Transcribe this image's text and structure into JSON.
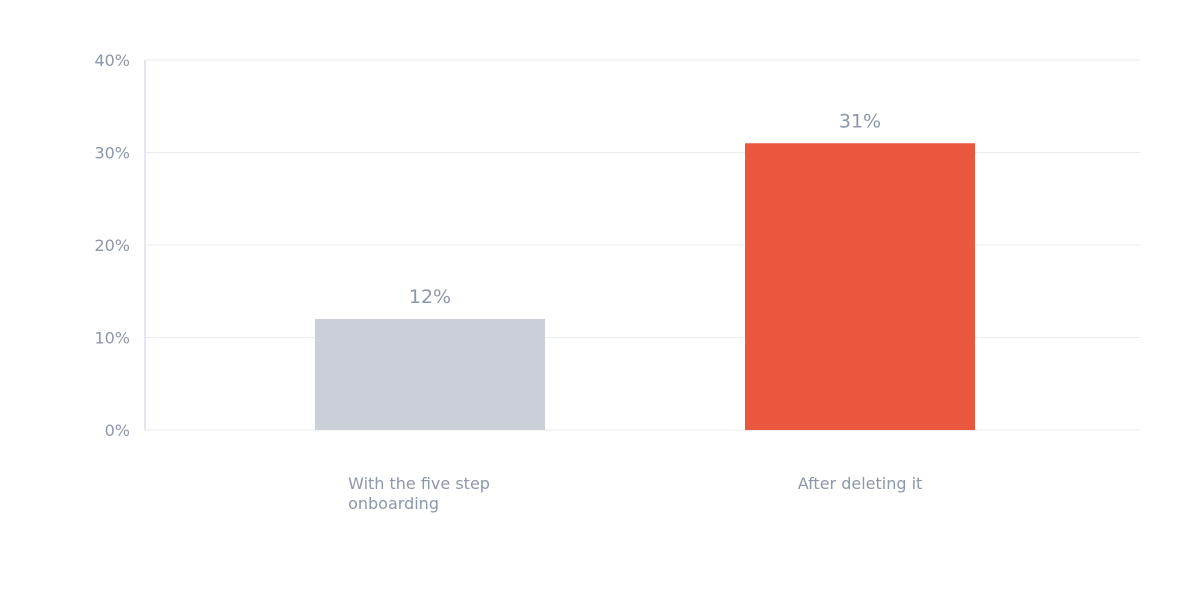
{
  "chart_data": {
    "type": "bar",
    "title": "",
    "xlabel": "",
    "ylabel": "",
    "categories": [
      "With the five step onboarding",
      "After deleting it"
    ],
    "category_label_lines": [
      [
        "With the five step",
        "onboarding"
      ],
      [
        "After deleting it"
      ]
    ],
    "values": [
      12,
      31
    ],
    "data_labels": [
      "12%",
      "31%"
    ],
    "bar_colors": [
      "#cbcfd6",
      "#e9573e"
    ],
    "ylim": [
      0,
      40
    ],
    "yticks": [
      0,
      10,
      20,
      30,
      40
    ],
    "ytick_labels": [
      "0%",
      "10%",
      "20%",
      "30%",
      "40%"
    ],
    "grid": true,
    "legend": "none",
    "colors": {
      "text": "#8c97aa",
      "grid": "#e8ebf0",
      "axis": "#c9cfe0"
    }
  }
}
